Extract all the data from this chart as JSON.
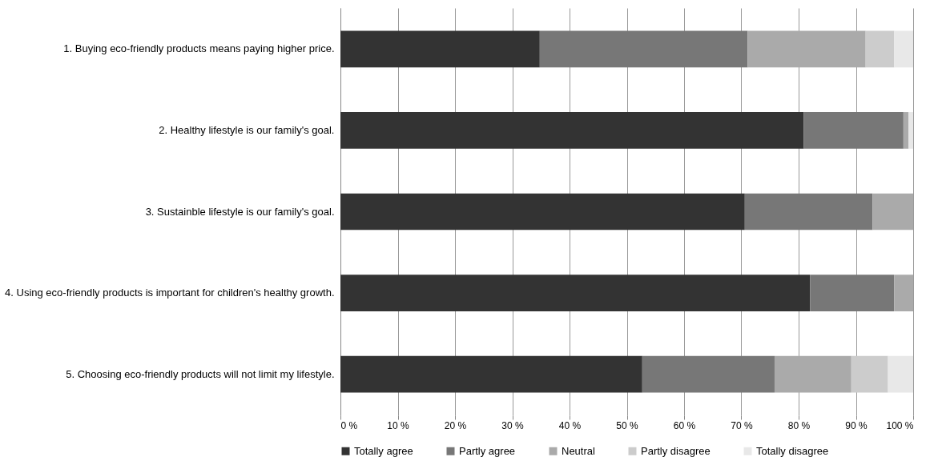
{
  "chart_data": {
    "type": "bar",
    "orientation": "horizontal",
    "stacked": true,
    "categories": [
      "1. Buying eco-friendly products means paying higher price.",
      "2. Healthy lifestyle is our family's goal.",
      "3. Sustainble lifestyle is our family's goal.",
      "4. Using eco-friendly products is important for children's healthy growth.",
      "5. Choosing eco-friendly products will not limit my lifestyle."
    ],
    "series": [
      {
        "name": "Totally agree",
        "color": "#333333",
        "values": [
          34.8,
          80.9,
          70.6,
          82.0,
          52.7
        ]
      },
      {
        "name": "Partly agree",
        "color": "#777777",
        "values": [
          36.3,
          17.4,
          22.3,
          14.7,
          23.1
        ]
      },
      {
        "name": "Neutral",
        "color": "#aaaaaa",
        "values": [
          20.6,
          0.9,
          7.1,
          3.3,
          13.4
        ]
      },
      {
        "name": "Partly disagree",
        "color": "#cccccc",
        "values": [
          5.0,
          0,
          0,
          0,
          6.4
        ]
      },
      {
        "name": "Totally disagree",
        "color": "#e8e8e8",
        "values": [
          3.3,
          0.8,
          0,
          0,
          4.4
        ]
      }
    ],
    "xlim": [
      0,
      100
    ],
    "xticks": [
      {
        "value": 0,
        "label": "0 %"
      },
      {
        "value": 10,
        "label": "10 %"
      },
      {
        "value": 20,
        "label": "20 %"
      },
      {
        "value": 30,
        "label": "30 %"
      },
      {
        "value": 40,
        "label": "40 %"
      },
      {
        "value": 50,
        "label": "50 %"
      },
      {
        "value": 60,
        "label": "60 %"
      },
      {
        "value": 70,
        "label": "70 %"
      },
      {
        "value": 80,
        "label": "80 %"
      },
      {
        "value": 90,
        "label": "90 %"
      },
      {
        "value": 100,
        "label": "100 %"
      }
    ],
    "grid": "x",
    "legend": "bottom"
  }
}
